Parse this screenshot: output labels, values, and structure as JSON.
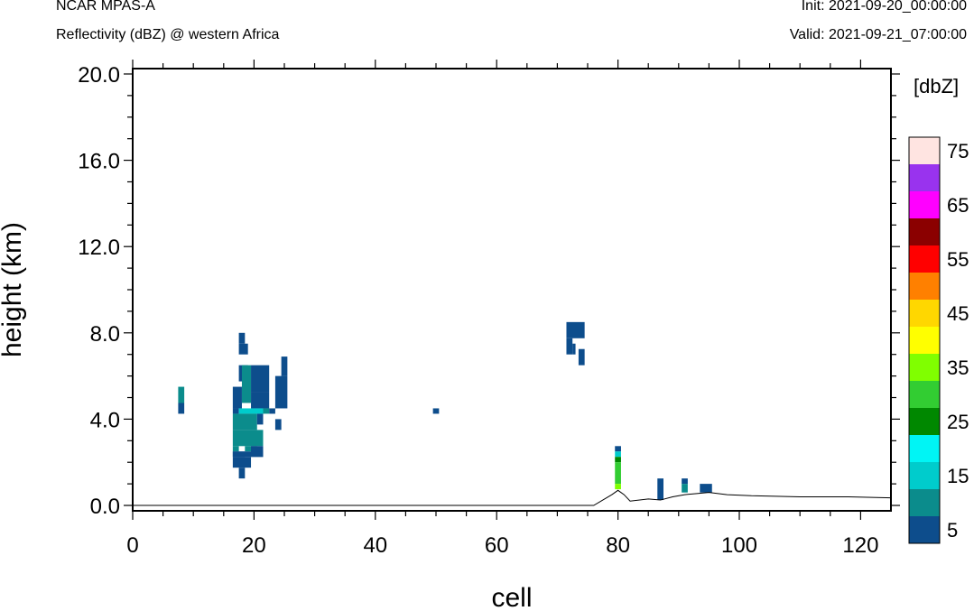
{
  "header": {
    "model": "NCAR MPAS-A",
    "field": "Reflectivity (dBZ) @ western Africa",
    "init": "Init: 2021-09-20_00:00:00",
    "valid": "Valid: 2021-09-21_07:00:00"
  },
  "chart_data": {
    "type": "heatmap",
    "xlabel": "cell",
    "ylabel": "height (km)",
    "xlim": [
      0,
      125
    ],
    "ylim": [
      -0.25,
      20.25
    ],
    "x_ticks": [
      0,
      20,
      40,
      60,
      80,
      100,
      120
    ],
    "x_tick_labels": [
      "0",
      "20",
      "40",
      "60",
      "80",
      "100",
      "120"
    ],
    "y_ticks": [
      0,
      4,
      8,
      12,
      16,
      20
    ],
    "y_tick_labels": [
      "0.0",
      "4.0",
      "8.0",
      "12.0",
      "16.0",
      "20.0"
    ],
    "colorbar": {
      "title": "[dbZ]",
      "levels": [
        5,
        10,
        15,
        20,
        25,
        30,
        35,
        40,
        45,
        50,
        55,
        60,
        65,
        70,
        75
      ],
      "labels": [
        "5",
        "15",
        "25",
        "35",
        "45",
        "55",
        "65",
        "75"
      ],
      "colors": [
        "#0d4d8c",
        "#0b8c8c",
        "#00cccc",
        "#00f5f5",
        "#008800",
        "#32cd32",
        "#80ff00",
        "#ffff00",
        "#ffd700",
        "#ff8000",
        "#ff0000",
        "#8b0000",
        "#ff00ff",
        "#9933ee",
        "#ffe4e1"
      ]
    },
    "cells": [
      {
        "x": [
          7.5,
          8.5
        ],
        "y": [
          4.75,
          5.5
        ],
        "dbz": 10
      },
      {
        "x": [
          7.5,
          8.5
        ],
        "y": [
          4.25,
          4.75
        ],
        "dbz": 5
      },
      {
        "x": [
          17.5,
          18.5
        ],
        "y": [
          7.5,
          8.0
        ],
        "dbz": 5
      },
      {
        "x": [
          17.5,
          19.0
        ],
        "y": [
          7.0,
          7.5
        ],
        "dbz": 5
      },
      {
        "x": [
          17.5,
          19.0
        ],
        "y": [
          5.75,
          6.5
        ],
        "dbz": 5
      },
      {
        "x": [
          19.5,
          22.5
        ],
        "y": [
          5.25,
          6.5
        ],
        "dbz": 5
      },
      {
        "x": [
          16.5,
          18.0
        ],
        "y": [
          4.5,
          5.5
        ],
        "dbz": 5
      },
      {
        "x": [
          18.0,
          19.5
        ],
        "y": [
          4.75,
          6.5
        ],
        "dbz": 10
      },
      {
        "x": [
          19.5,
          22.5
        ],
        "y": [
          4.5,
          5.25
        ],
        "dbz": 5
      },
      {
        "x": [
          23.5,
          25.5
        ],
        "y": [
          4.5,
          6.0
        ],
        "dbz": 5
      },
      {
        "x": [
          24.5,
          25.5
        ],
        "y": [
          6.0,
          6.9
        ],
        "dbz": 5
      },
      {
        "x": [
          16.5,
          17.5
        ],
        "y": [
          4.25,
          4.5
        ],
        "dbz": 5
      },
      {
        "x": [
          17.5,
          21.5
        ],
        "y": [
          4.25,
          4.5
        ],
        "dbz": 15
      },
      {
        "x": [
          21.5,
          22.5
        ],
        "y": [
          4.25,
          4.5
        ],
        "dbz": 10
      },
      {
        "x": [
          22.5,
          23.5
        ],
        "y": [
          4.25,
          4.5
        ],
        "dbz": 5
      },
      {
        "x": [
          16.5,
          20.5
        ],
        "y": [
          3.5,
          4.25
        ],
        "dbz": 10
      },
      {
        "x": [
          20.5,
          21.5
        ],
        "y": [
          3.75,
          4.25
        ],
        "dbz": 5
      },
      {
        "x": [
          23.5,
          24.5
        ],
        "y": [
          3.5,
          4.0
        ],
        "dbz": 5
      },
      {
        "x": [
          16.5,
          21.5
        ],
        "y": [
          2.75,
          3.5
        ],
        "dbz": 10
      },
      {
        "x": [
          16.5,
          17.5
        ],
        "y": [
          2.5,
          2.75
        ],
        "dbz": 10
      },
      {
        "x": [
          18.5,
          20.5
        ],
        "y": [
          2.5,
          2.75
        ],
        "dbz": 10
      },
      {
        "x": [
          16.5,
          18.5
        ],
        "y": [
          2.25,
          2.5
        ],
        "dbz": 5
      },
      {
        "x": [
          19.5,
          21.5
        ],
        "y": [
          2.25,
          2.75
        ],
        "dbz": 5
      },
      {
        "x": [
          16.5,
          21.5
        ],
        "y": [
          2.25,
          2.5
        ],
        "dbz": 5
      },
      {
        "x": [
          16.5,
          19.5
        ],
        "y": [
          1.75,
          2.25
        ],
        "dbz": 5
      },
      {
        "x": [
          17.5,
          18.5
        ],
        "y": [
          1.25,
          1.75
        ],
        "dbz": 5
      },
      {
        "x": [
          49.5,
          50.5
        ],
        "y": [
          4.25,
          4.5
        ],
        "dbz": 5
      },
      {
        "x": [
          71.5,
          74.5
        ],
        "y": [
          7.75,
          8.5
        ],
        "dbz": 5
      },
      {
        "x": [
          71.5,
          72.5
        ],
        "y": [
          7.0,
          7.75
        ],
        "dbz": 5
      },
      {
        "x": [
          72.5,
          73.0
        ],
        "y": [
          7.0,
          7.5
        ],
        "dbz": 5
      },
      {
        "x": [
          73.5,
          74.5
        ],
        "y": [
          6.5,
          7.25
        ],
        "dbz": 5
      },
      {
        "x": [
          79.5,
          80.5
        ],
        "y": [
          2.5,
          2.75
        ],
        "dbz": 5
      },
      {
        "x": [
          79.5,
          80.5
        ],
        "y": [
          2.25,
          2.5
        ],
        "dbz": 15
      },
      {
        "x": [
          79.5,
          80.5
        ],
        "y": [
          2.0,
          2.25
        ],
        "dbz": 25
      },
      {
        "x": [
          79.5,
          80.5
        ],
        "y": [
          1.0,
          2.0
        ],
        "dbz": 30
      },
      {
        "x": [
          79.5,
          80.5
        ],
        "y": [
          0.75,
          1.0
        ],
        "dbz": 35
      },
      {
        "x": [
          86.5,
          87.5
        ],
        "y": [
          0.25,
          1.25
        ],
        "dbz": 5
      },
      {
        "x": [
          90.5,
          91.5
        ],
        "y": [
          1.0,
          1.25
        ],
        "dbz": 5
      },
      {
        "x": [
          90.5,
          91.5
        ],
        "y": [
          0.6,
          1.0
        ],
        "dbz": 10
      },
      {
        "x": [
          93.5,
          95.5
        ],
        "y": [
          0.6,
          1.0
        ],
        "dbz": 5
      }
    ],
    "terrain_km": [
      [
        0,
        0
      ],
      [
        76,
        0
      ],
      [
        79,
        0.5
      ],
      [
        80,
        0.7
      ],
      [
        81,
        0.5
      ],
      [
        82,
        0.2
      ],
      [
        85,
        0.3
      ],
      [
        87,
        0.25
      ],
      [
        89,
        0.4
      ],
      [
        91,
        0.5
      ],
      [
        93,
        0.55
      ],
      [
        95,
        0.6
      ],
      [
        98,
        0.5
      ],
      [
        102,
        0.45
      ],
      [
        110,
        0.4
      ],
      [
        118,
        0.4
      ],
      [
        125,
        0.35
      ]
    ]
  }
}
